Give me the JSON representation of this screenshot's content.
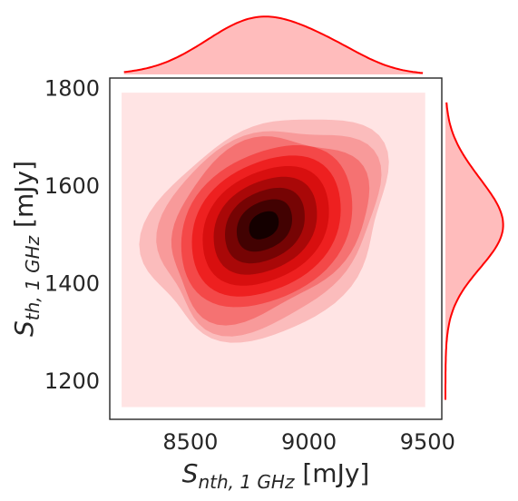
{
  "chart_data": {
    "type": "kde-jointplot",
    "x_axis": {
      "label_main": "S",
      "label_sub": "nth, 1 GHz",
      "label_unit": " [mJy]",
      "ticks": [
        8500,
        9000,
        9500
      ],
      "range": [
        8160,
        9560
      ]
    },
    "y_axis": {
      "label_main": "S",
      "label_sub": "th, 1 GHz",
      "label_unit": " [mJy]",
      "ticks": [
        1200,
        1400,
        1600,
        1800
      ],
      "range": [
        1120,
        1820
      ]
    },
    "joint_density": {
      "peak": {
        "x": 8810,
        "y": 1518
      },
      "center": {
        "x": 8830,
        "y": 1515
      },
      "sigma_major": 230,
      "sigma_minor": 85,
      "orientation_deg": 35,
      "support_rect": {
        "x": [
          8210,
          9490
        ],
        "y": [
          1145,
          1790
        ]
      },
      "levels": 10,
      "colors": [
        "#ffe4e4",
        "#fbbcbc",
        "#f89a9a",
        "#f57272",
        "#f44848",
        "#ee2020",
        "#d80f0f",
        "#a90808",
        "#760404",
        "#420202",
        "#140000"
      ]
    },
    "marginal_x": {
      "color": "#ff0000",
      "fill": "#ffbcbc",
      "range": [
        8220,
        9480
      ],
      "mean": 8800,
      "sigma": 230
    },
    "marginal_y": {
      "color": "#ff0000",
      "fill": "#ffbcbc",
      "range": [
        1160,
        1770
      ],
      "mean": 1515,
      "sigma": 85
    },
    "grid": false
  }
}
